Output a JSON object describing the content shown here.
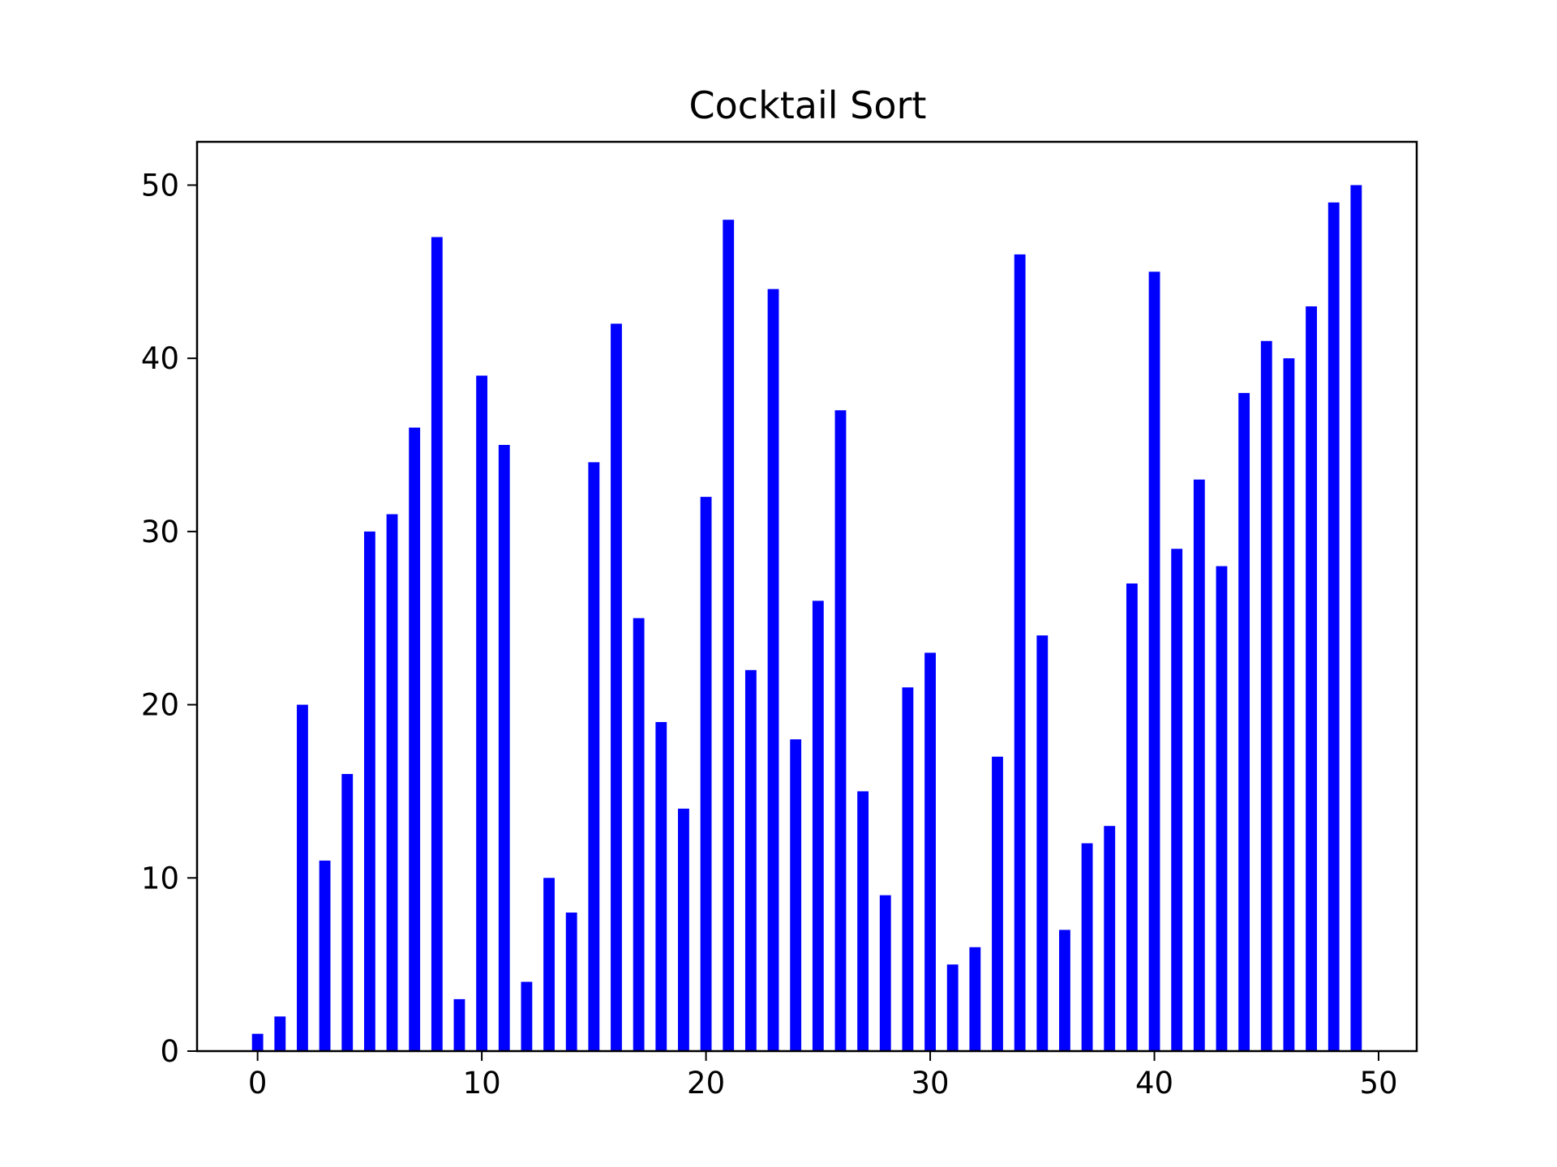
{
  "chart_data": {
    "type": "bar",
    "title": "Cocktail Sort",
    "xlabel": "",
    "ylabel": "",
    "x": [
      0,
      1,
      2,
      3,
      4,
      5,
      6,
      7,
      8,
      9,
      10,
      11,
      12,
      13,
      14,
      15,
      16,
      17,
      18,
      19,
      20,
      21,
      22,
      23,
      24,
      25,
      26,
      27,
      28,
      29,
      30,
      31,
      32,
      33,
      34,
      35,
      36,
      37,
      38,
      39,
      40,
      41,
      42,
      43,
      44,
      45,
      46,
      47,
      48,
      49
    ],
    "values": [
      1,
      2,
      20,
      11,
      16,
      30,
      31,
      36,
      47,
      3,
      39,
      35,
      4,
      10,
      8,
      34,
      42,
      25,
      19,
      14,
      32,
      48,
      22,
      44,
      18,
      26,
      37,
      15,
      9,
      21,
      23,
      5,
      6,
      17,
      46,
      24,
      7,
      12,
      13,
      27,
      45,
      29,
      33,
      28,
      38,
      41,
      40,
      43,
      49,
      50
    ],
    "xlim": [
      -2.7,
      51.7
    ],
    "ylim": [
      0,
      52.5
    ],
    "xticks": [
      0,
      10,
      20,
      30,
      40,
      50
    ],
    "yticks": [
      0,
      10,
      20,
      30,
      40,
      50
    ],
    "xtick_labels": [
      "0",
      "10",
      "20",
      "30",
      "40",
      "50"
    ],
    "ytick_labels": [
      "0",
      "10",
      "20",
      "30",
      "40",
      "50"
    ],
    "bar_color": "#0000ff",
    "grid": false,
    "legend": "none"
  }
}
